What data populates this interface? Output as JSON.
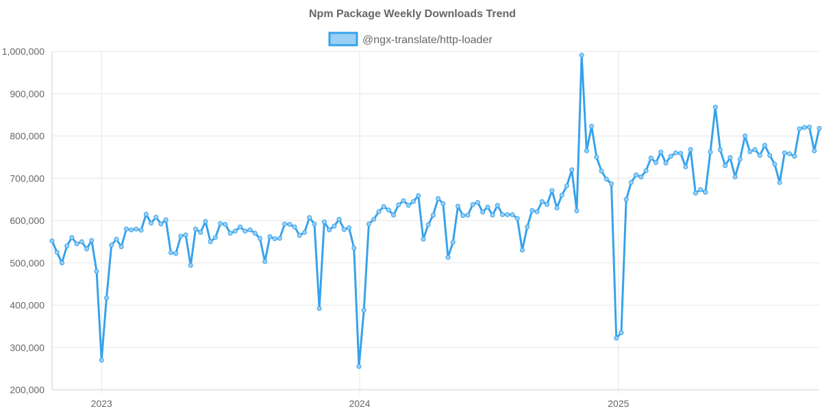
{
  "chart_data": {
    "type": "line",
    "title": "Npm Package Weekly Downloads Trend",
    "xlabel": "",
    "ylabel": "",
    "x_start": "2022-10-23",
    "x_step_days": 7,
    "x_ticks": [
      "2023",
      "2024",
      "2025"
    ],
    "ylim": [
      200000,
      1000000
    ],
    "y_ticks": [
      200000,
      300000,
      400000,
      500000,
      600000,
      700000,
      800000,
      900000,
      1000000
    ],
    "y_tick_labels": [
      "200,000",
      "300,000",
      "400,000",
      "500,000",
      "600,000",
      "700,000",
      "800,000",
      "900,000",
      "1,000,000"
    ],
    "grid": true,
    "legend_position": "top",
    "series": [
      {
        "name": "@ngx-translate/http-loader",
        "color": "#36a2eb",
        "fill": "#9ad0f5",
        "values": [
          552000,
          525000,
          500000,
          540000,
          560000,
          545000,
          550000,
          533000,
          553000,
          480000,
          270000,
          417000,
          542000,
          556000,
          538000,
          580000,
          578000,
          580000,
          577000,
          615000,
          594000,
          608000,
          592000,
          602000,
          524000,
          522000,
          563000,
          566000,
          494000,
          580000,
          572000,
          598000,
          550000,
          560000,
          593000,
          591000,
          570000,
          575000,
          585000,
          575000,
          578000,
          570000,
          558000,
          503000,
          562000,
          557000,
          558000,
          592000,
          591000,
          585000,
          565000,
          572000,
          607000,
          592000,
          392000,
          597000,
          578000,
          587000,
          603000,
          579000,
          583000,
          535000,
          255000,
          388000,
          592000,
          603000,
          621000,
          633000,
          625000,
          613000,
          637000,
          647000,
          636000,
          645000,
          659000,
          556000,
          590000,
          613000,
          652000,
          640000,
          513000,
          549000,
          634000,
          612000,
          613000,
          638000,
          643000,
          620000,
          632000,
          613000,
          636000,
          614000,
          614000,
          614000,
          605000,
          530000,
          585000,
          624000,
          621000,
          645000,
          638000,
          671000,
          630000,
          660000,
          682000,
          720000,
          623000,
          991000,
          765000,
          823000,
          750000,
          717000,
          698000,
          687000,
          322000,
          335000,
          650000,
          690000,
          708000,
          703000,
          718000,
          748000,
          737000,
          762000,
          736000,
          752000,
          760000,
          759000,
          727000,
          768000,
          665000,
          673000,
          667000,
          762000,
          868000,
          767000,
          730000,
          749000,
          703000,
          745000,
          800000,
          763000,
          768000,
          754000,
          778000,
          754000,
          733000,
          690000,
          760000,
          758000,
          752000,
          817000,
          820000,
          821000,
          765000,
          818000
        ]
      }
    ]
  }
}
